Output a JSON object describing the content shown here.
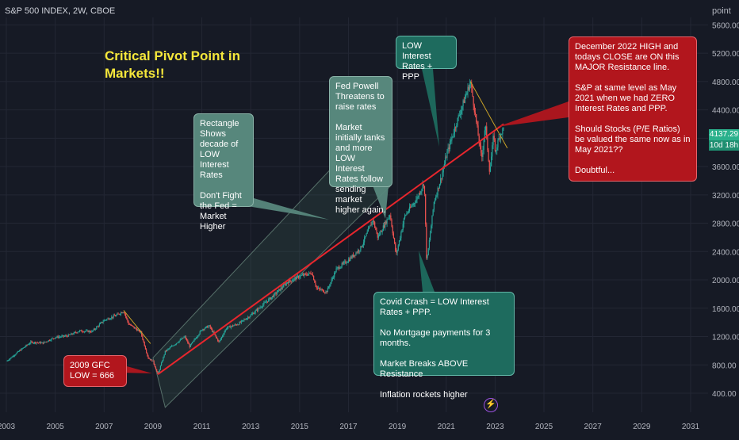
{
  "header": {
    "title": "S&P 500 INDEX, 2W, CBOE"
  },
  "unit_label": "point",
  "headline": "Critical Pivot Point in Markets!!",
  "annotations": {
    "gfc": "2009 GFC LOW = 666",
    "rectangle": "Rectangle Shows decade of LOW Interest Rates\n\nDon't Fight the Fed = Market Higher",
    "powell": "Fed Powell Threatens to raise rates\n\nMarket initially tanks and more LOW Interest Rates follow sending market higher again.",
    "low_rates": "LOW Interest Rates + PPP",
    "covid": "Covid Crash = LOW Interest Rates + PPP.\n\nNo Mortgage payments for 3 months.\n\nMarket Breaks ABOVE Resistance\n\nInflation rockets higher",
    "december": "December 2022 HIGH and todays CLOSE are ON this MAJOR Resistance line.\n\nS&P at same level as May 2021 when we had ZERO Interest Rates and PPP.\n\nShould Stocks (P/E Ratios) be valued the same now as in May 2021??\n\nDoubtful..."
  },
  "price_badge": {
    "price": "4137.29",
    "countdown": "10d 18h"
  },
  "colors": {
    "background": "#161a25",
    "trendline": "#e8262d",
    "candle_up": "#26a69a",
    "candle_down": "#ef5350",
    "resistance_short": "#c9a227",
    "headline": "#f5e73b",
    "channel": "#3f6b5a"
  },
  "chart_data": {
    "type": "candlestick",
    "title": "S&P 500 INDEX, 2W, CBOE",
    "ylabel": "point",
    "ylim": [
      200,
      5800
    ],
    "x_range": [
      2002.9,
      2032.2
    ],
    "y_scale": "linear",
    "grid": true,
    "yticks": [
      400,
      800,
      1200,
      1600,
      2000,
      2400,
      2800,
      3200,
      3600,
      4000,
      4400,
      4800,
      5200,
      5600
    ],
    "yticks_labels": [
      "400.00",
      "800.00",
      "1200.00",
      "1600.00",
      "2000.00",
      "2400.00",
      "2800.00",
      "3200.00",
      "3600.00",
      "4000.00",
      "4400.00",
      "4800.00",
      "5200.00",
      "5600.00"
    ],
    "xticks": [
      2003,
      2005,
      2007,
      2009,
      2011,
      2013,
      2015,
      2017,
      2019,
      2021,
      2023,
      2025,
      2027,
      2029,
      2031
    ],
    "xticks_labels": [
      "2003",
      "2005",
      "2007",
      "2009",
      "2011",
      "2013",
      "2015",
      "2017",
      "2019",
      "2021",
      "2023",
      "2025",
      "2027",
      "2029",
      "2031"
    ],
    "price_path": [
      [
        2003.0,
        850
      ],
      [
        2003.5,
        990
      ],
      [
        2004.0,
        1120
      ],
      [
        2004.5,
        1110
      ],
      [
        2005.0,
        1190
      ],
      [
        2005.5,
        1210
      ],
      [
        2006.0,
        1280
      ],
      [
        2006.5,
        1270
      ],
      [
        2007.0,
        1430
      ],
      [
        2007.5,
        1500
      ],
      [
        2007.8,
        1560
      ],
      [
        2008.0,
        1380
      ],
      [
        2008.5,
        1260
      ],
      [
        2008.8,
        900
      ],
      [
        2009.0,
        850
      ],
      [
        2009.2,
        666
      ],
      [
        2009.5,
        990
      ],
      [
        2010.0,
        1120
      ],
      [
        2010.3,
        1200
      ],
      [
        2010.5,
        1060
      ],
      [
        2011.0,
        1300
      ],
      [
        2011.3,
        1350
      ],
      [
        2011.7,
        1120
      ],
      [
        2012.0,
        1320
      ],
      [
        2012.5,
        1380
      ],
      [
        2013.0,
        1500
      ],
      [
        2013.5,
        1650
      ],
      [
        2014.0,
        1800
      ],
      [
        2014.5,
        1970
      ],
      [
        2015.0,
        2050
      ],
      [
        2015.5,
        2100
      ],
      [
        2015.7,
        1880
      ],
      [
        2016.1,
        1830
      ],
      [
        2016.5,
        2150
      ],
      [
        2017.0,
        2280
      ],
      [
        2017.5,
        2450
      ],
      [
        2018.0,
        2850
      ],
      [
        2018.2,
        2600
      ],
      [
        2018.7,
        2930
      ],
      [
        2018.95,
        2350
      ],
      [
        2019.3,
        2900
      ],
      [
        2019.8,
        3150
      ],
      [
        2020.1,
        3380
      ],
      [
        2020.2,
        2240
      ],
      [
        2020.5,
        3100
      ],
      [
        2020.8,
        3450
      ],
      [
        2021.0,
        3750
      ],
      [
        2021.4,
        4200
      ],
      [
        2021.7,
        4500
      ],
      [
        2021.99,
        4800
      ],
      [
        2022.2,
        4300
      ],
      [
        2022.45,
        3700
      ],
      [
        2022.6,
        4200
      ],
      [
        2022.78,
        3520
      ],
      [
        2022.95,
        4080
      ],
      [
        2023.0,
        3800
      ],
      [
        2023.2,
        4050
      ],
      [
        2023.35,
        4137
      ]
    ],
    "trendline": {
      "name": "MAJOR Resistance line",
      "points": [
        [
          2009.2,
          666
        ],
        [
          2023.35,
          4200
        ]
      ]
    },
    "short_resistance": [
      {
        "points": [
          [
            2007.8,
            1570
          ],
          [
            2008.9,
            1100
          ]
        ]
      },
      {
        "points": [
          [
            2021.99,
            4800
          ],
          [
            2023.5,
            3860
          ]
        ]
      }
    ],
    "channel": {
      "points": [
        [
          2009.0,
          900
        ],
        [
          2017.9,
          4160
        ],
        [
          2018.7,
          3320
        ],
        [
          2009.5,
          200
        ]
      ]
    },
    "last_price": 4137.29
  }
}
